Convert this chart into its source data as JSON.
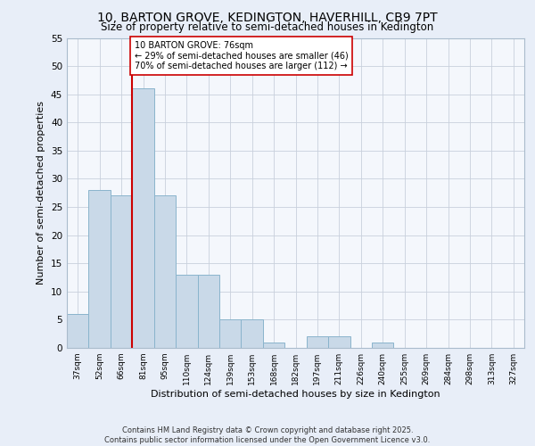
{
  "title1": "10, BARTON GROVE, KEDINGTON, HAVERHILL, CB9 7PT",
  "title2": "Size of property relative to semi-detached houses in Kedington",
  "xlabel": "Distribution of semi-detached houses by size in Kedington",
  "ylabel": "Number of semi-detached properties",
  "categories": [
    "37sqm",
    "52sqm",
    "66sqm",
    "81sqm",
    "95sqm",
    "110sqm",
    "124sqm",
    "139sqm",
    "153sqm",
    "168sqm",
    "182sqm",
    "197sqm",
    "211sqm",
    "226sqm",
    "240sqm",
    "255sqm",
    "269sqm",
    "284sqm",
    "298sqm",
    "313sqm",
    "327sqm"
  ],
  "values": [
    6,
    28,
    27,
    46,
    27,
    13,
    13,
    5,
    5,
    1,
    0,
    2,
    2,
    0,
    1,
    0,
    0,
    0,
    0,
    0,
    0
  ],
  "bar_color": "#c9d9e8",
  "bar_edge_color": "#8ab4cc",
  "vline_color": "#cc0000",
  "annotation_text": "10 BARTON GROVE: 76sqm\n← 29% of semi-detached houses are smaller (46)\n70% of semi-detached houses are larger (112) →",
  "annotation_box_color": "#ffffff",
  "annotation_box_edge": "#cc0000",
  "ylim": [
    0,
    55
  ],
  "yticks": [
    0,
    5,
    10,
    15,
    20,
    25,
    30,
    35,
    40,
    45,
    50,
    55
  ],
  "footer": "Contains HM Land Registry data © Crown copyright and database right 2025.\nContains public sector information licensed under the Open Government Licence v3.0.",
  "bg_color": "#e8eef8",
  "plot_bg_color": "#f4f7fc",
  "grid_color": "#c8d0dc"
}
